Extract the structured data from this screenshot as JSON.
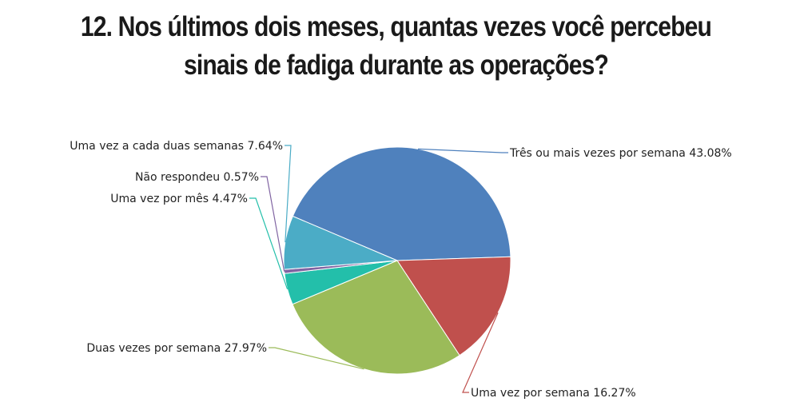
{
  "title": {
    "line1": "12. Nos últimos dois meses, quantas vezes você percebeu",
    "line2": "sinais de fadiga durante as operações?"
  },
  "chart_data": {
    "type": "pie",
    "title": "12. Nos últimos dois meses, quantas vezes você percebeu sinais de fadiga durante as operações?",
    "legend": "none",
    "slices": [
      {
        "label": "Três ou mais vezes por semana",
        "value": 43.08,
        "value_label": "43.08%",
        "color": "#4f81bd"
      },
      {
        "label": "Uma vez por semana",
        "value": 16.27,
        "value_label": "16.27%",
        "color": "#c0504d"
      },
      {
        "label": "Duas vezes por semana",
        "value": 27.97,
        "value_label": "27.97%",
        "color": "#9bbb59"
      },
      {
        "label": "Uma vez por mês",
        "value": 4.47,
        "value_label": "4.47%",
        "color": "#23bfaa"
      },
      {
        "label": "Não respondeu",
        "value": 0.57,
        "value_label": "0.57%",
        "color": "#8064a2"
      },
      {
        "label": "Uma vez a cada duas semanas",
        "value": 7.64,
        "value_label": "7.64%",
        "color": "#4bacc6"
      }
    ]
  }
}
